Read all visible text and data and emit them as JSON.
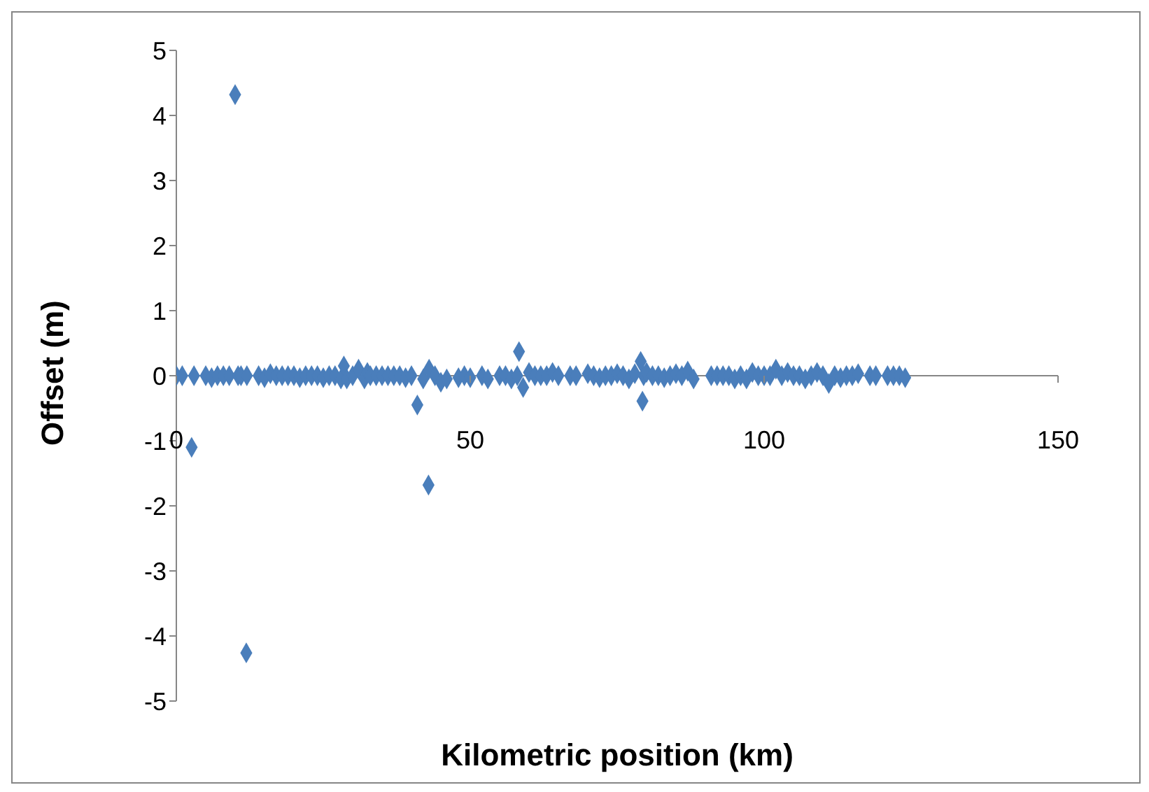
{
  "chart_data": {
    "type": "scatter",
    "xlabel": "Kilometric position (km)",
    "ylabel": "Offset (m)",
    "x": [
      0,
      1,
      2.6,
      3,
      5,
      6,
      7,
      8,
      9,
      10,
      10.5,
      11,
      11.9,
      12,
      14,
      15,
      16,
      17,
      18,
      19,
      20,
      21,
      22,
      23,
      24,
      25,
      26,
      27,
      28,
      28.5,
      29,
      30,
      31,
      32,
      32.5,
      33,
      34,
      35,
      36,
      37,
      38,
      39,
      40,
      41,
      42,
      42.9,
      43,
      44,
      45,
      46,
      48,
      49,
      50,
      52,
      53,
      55,
      56,
      57,
      58,
      58.3,
      59,
      60,
      61,
      62,
      63,
      64,
      65,
      67,
      68,
      70,
      71,
      72,
      73,
      74,
      75,
      76,
      77,
      78,
      79,
      79.3,
      79.5,
      80,
      81,
      82,
      83,
      84,
      85,
      86,
      87,
      88,
      91,
      92,
      93,
      94,
      95,
      96,
      97,
      98,
      99,
      100,
      101,
      102,
      103,
      104,
      105,
      106,
      107,
      108,
      109,
      110,
      111,
      112,
      113,
      114,
      115,
      116,
      118,
      119,
      121,
      122,
      123,
      124
    ],
    "series": [
      {
        "color": "#4a7ebb",
        "values": [
          0,
          0,
          -1.1,
          0,
          0,
          -0.03,
          0,
          0,
          0,
          4.32,
          0,
          0,
          -4.26,
          0,
          0,
          -0.03,
          0.03,
          0,
          0,
          0,
          0,
          -0.03,
          0,
          0,
          0,
          -0.03,
          0,
          0,
          -0.05,
          0.15,
          -0.05,
          0,
          0.1,
          -0.05,
          0.05,
          0,
          0,
          0,
          0,
          0,
          0,
          -0.03,
          0,
          -0.45,
          -0.05,
          -1.68,
          0.1,
          0,
          -0.1,
          -0.05,
          -0.03,
          0,
          -0.03,
          0,
          -0.05,
          0,
          0,
          -0.05,
          0,
          0.37,
          -0.18,
          0.05,
          0,
          0,
          0,
          0.05,
          0,
          0,
          0,
          0.03,
          0,
          -0.03,
          0,
          0,
          0.03,
          0,
          -0.05,
          0.03,
          0.22,
          -0.39,
          0,
          0.05,
          0,
          0,
          -0.03,
          0,
          0.03,
          0,
          0.07,
          -0.05,
          0,
          0,
          0,
          0,
          -0.05,
          0,
          -0.05,
          0.05,
          0,
          0,
          0,
          0.1,
          0,
          0.05,
          0,
          0,
          -0.05,
          0,
          0.05,
          0,
          -0.12,
          0,
          -0.03,
          0,
          0,
          0.03,
          0,
          0,
          0,
          0,
          0,
          -0.03
        ]
      }
    ],
    "xlim": [
      0,
      150
    ],
    "xticks": [
      0,
      50,
      100,
      150
    ],
    "ylim": [
      -5,
      5
    ],
    "yticks": [
      -5,
      -4,
      -3,
      -2,
      -1,
      0,
      1,
      2,
      3,
      4,
      5
    ],
    "grid": false,
    "legend": false,
    "marker": "diamond"
  }
}
